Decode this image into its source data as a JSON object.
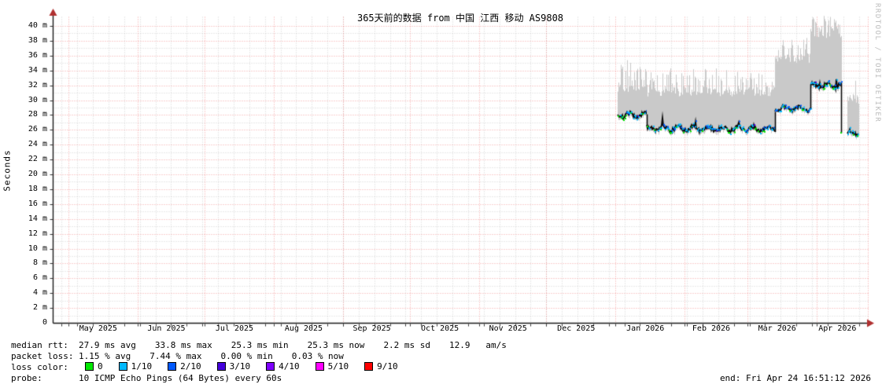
{
  "chart_data": {
    "type": "line",
    "subtype": "smokeping-latency-graph (median line + min/max smoke band)",
    "title": "365天前的数据 from 中国 江西 移动 AS9808",
    "ylabel": "Seconds",
    "watermark": "RRDTOOL / TOBI OETIKER",
    "ylim": [
      0,
      41
    ],
    "y_unit": "milliseconds",
    "y_ticks": [
      "40 m",
      "38 m",
      "36 m",
      "34 m",
      "32 m",
      "30 m",
      "28 m",
      "26 m",
      "24 m",
      "22 m",
      "20 m",
      "18 m",
      "16 m",
      "14 m",
      "12 m",
      "10 m",
      "8 m",
      "6 m",
      "4 m",
      "2 m",
      "0"
    ],
    "x_range_days": 365,
    "months": [
      {
        "label": "May 2025",
        "start_day": 7
      },
      {
        "label": "Jun 2025",
        "start_day": 38
      },
      {
        "label": "Jul 2025",
        "start_day": 68
      },
      {
        "label": "Aug 2025",
        "start_day": 99
      },
      {
        "label": "Sep 2025",
        "start_day": 130
      },
      {
        "label": "Oct 2025",
        "start_day": 160
      },
      {
        "label": "Nov 2025",
        "start_day": 191
      },
      {
        "label": "Dec 2025",
        "start_day": 221
      },
      {
        "label": "Jan 2026",
        "start_day": 252
      },
      {
        "label": "Feb 2026",
        "start_day": 283
      },
      {
        "label": "Mar 2026",
        "start_day": 311
      },
      {
        "label": "Apr 2026",
        "start_day": 342
      }
    ],
    "end_day": 365,
    "grid": {
      "major_color": "rgba(235,85,85,0.55)",
      "minor_color": "rgba(145,145,145,0.38)",
      "y_major_step_ms": 2,
      "y_minor_step_ms": 1,
      "x_minor_step_days": 7
    },
    "colors": {
      "smoke": "#c9c9c9",
      "median_line": "#0a0a0a",
      "axis": "#1a1a1a",
      "arrow": "#b03030"
    },
    "series": [
      {
        "name": "median RTT with min-max smoke envelope",
        "unit": "ms",
        "segments": [
          {
            "start_day": 253.0,
            "end_day": 266.0,
            "median_ms": 28.0,
            "smoke_top_ms": 32.4,
            "spike_top_ms": 35.4,
            "spike_prob": 0.45
          },
          {
            "start_day": 266.0,
            "end_day": 323.4,
            "median_ms": 26.15,
            "smoke_top_ms": 31.8,
            "spike_top_ms": 34.4,
            "spike_prob": 0.3
          },
          {
            "start_day": 323.4,
            "end_day": 339.2,
            "median_ms": 28.9,
            "smoke_top_ms": 36.2,
            "spike_top_ms": 38.4,
            "spike_prob": 0.38
          },
          {
            "start_day": 339.2,
            "end_day": 353.0,
            "median_ms": 32.0,
            "smoke_top_ms": 39.6,
            "spike_top_ms": 41.4,
            "spike_prob": 0.5,
            "drop_to_ms": 25.6
          },
          {
            "start_day": 356.0,
            "end_day": 360.6,
            "median_ms": 25.6,
            "smoke_top_ms": 30.8,
            "spike_top_ms": 32.8,
            "spike_prob": 0.3
          }
        ]
      }
    ]
  },
  "stats": {
    "median_rtt": {
      "label": "median rtt:",
      "avg": "27.9 ms avg",
      "max": "33.8 ms max",
      "min": "25.3 ms min",
      "now": "25.3 ms now",
      "sd": "2.2 ms sd",
      "extra": "12.9   am/s"
    },
    "packet_loss": {
      "label": "packet loss:",
      "avg": "1.15 % avg",
      "max": "7.44 % max",
      "min": "0.00 % min",
      "now": "0.03 % now"
    },
    "loss_color": {
      "label": "loss color:",
      "items": [
        {
          "label": "0",
          "color": "#00e800"
        },
        {
          "label": "1/10",
          "color": "#00b8ff"
        },
        {
          "label": "2/10",
          "color": "#0059ff"
        },
        {
          "label": "3/10",
          "color": "#4400dd"
        },
        {
          "label": "4/10",
          "color": "#7e00ff"
        },
        {
          "label": "5/10",
          "color": "#ff00ff"
        },
        {
          "label": "9/10",
          "color": "#ff0000"
        }
      ]
    },
    "probe": {
      "label": "probe:",
      "value": "10 ICMP Echo Pings (64 Bytes) every 60s"
    },
    "end": "end: Fri Apr 24 16:51:12 2026"
  }
}
